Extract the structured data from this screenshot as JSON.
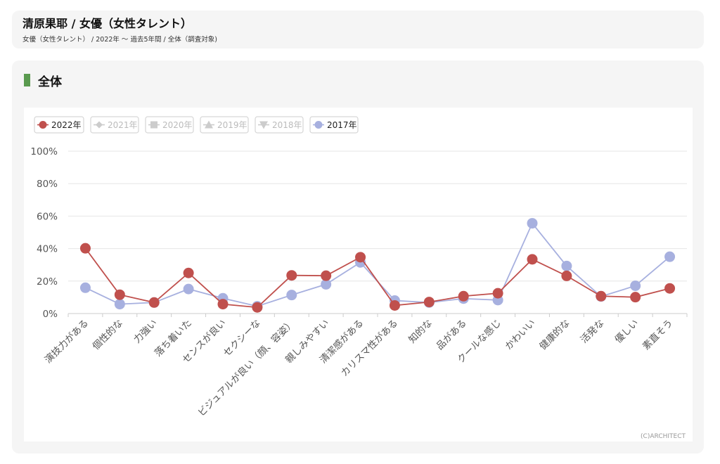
{
  "header": {
    "title": "清原果耶 / 女優（女性タレント）",
    "breadcrumb": "女優（女性タレント） / 2022年 〜 過去5年間 / 全体（調査対象)"
  },
  "section": {
    "title": "全体"
  },
  "copyright": "(C)ARCHITECT",
  "colors": {
    "accent_bar": "#5a9a4f",
    "series_2022": "#c0504d",
    "series_2017": "#a7b0df",
    "inactive": "#cccccc"
  },
  "chart_data": {
    "type": "line",
    "categories": [
      "演技力がある",
      "個性的な",
      "力強い",
      "落ち着いた",
      "センスが良い",
      "セクシーな",
      "ビジュアルが良い（顔、容姿）",
      "親しみやすい",
      "清潔感がある",
      "カリスマ性がある",
      "知的な",
      "品がある",
      "クールな感じ",
      "かわいい",
      "健康的な",
      "活発な",
      "優しい",
      "素直そう"
    ],
    "ylim": [
      0,
      100
    ],
    "yticks": [
      "0%",
      "20%",
      "40%",
      "60%",
      "80%",
      "100%"
    ],
    "grid": true,
    "legend_placement": "top-left",
    "legend": [
      {
        "name": "2022年",
        "active": true,
        "marker": "circle",
        "color": "#c0504d"
      },
      {
        "name": "2021年",
        "active": false,
        "marker": "diamond",
        "color": "#cccccc"
      },
      {
        "name": "2020年",
        "active": false,
        "marker": "square",
        "color": "#cccccc"
      },
      {
        "name": "2019年",
        "active": false,
        "marker": "triangle",
        "color": "#cccccc"
      },
      {
        "name": "2018年",
        "active": false,
        "marker": "triangle-down",
        "color": "#cccccc"
      },
      {
        "name": "2017年",
        "active": true,
        "marker": "circle",
        "color": "#a7b0df"
      }
    ],
    "series": [
      {
        "name": "2017年",
        "color": "#a7b0df",
        "values": [
          15.9,
          5.8,
          6.8,
          15.1,
          9.4,
          4.5,
          11.4,
          18,
          31.5,
          8,
          6.8,
          9.2,
          8.3,
          55.6,
          29.3,
          10.5,
          17.1,
          35
        ]
      },
      {
        "name": "2022年",
        "color": "#c0504d",
        "values": [
          40.2,
          11.6,
          6.8,
          25,
          5.8,
          3.8,
          23.5,
          23.3,
          34.7,
          5,
          7.1,
          10.7,
          12.5,
          33.4,
          23.2,
          10.7,
          10.1,
          15.5
        ]
      }
    ]
  }
}
